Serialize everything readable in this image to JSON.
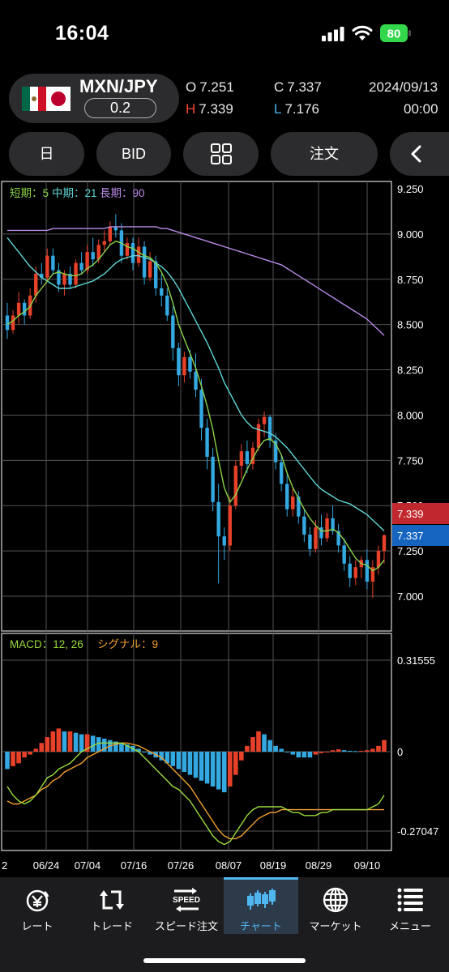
{
  "status_bar": {
    "time": "16:04",
    "battery": "80"
  },
  "header": {
    "pair": "MXN/JPY",
    "spread": "0.2",
    "open_key": "O",
    "open": "7.251",
    "close_key": "C",
    "close": "7.337",
    "high_key": "H",
    "high": "7.339",
    "low_key": "L",
    "low": "7.176",
    "date": "2024/09/13",
    "time": "00:00",
    "flag_icons": [
      "mexico-flag-icon",
      "japan-flag-icon"
    ]
  },
  "toolbar": {
    "period": "日",
    "price_type": "BID",
    "layout_icon": "grid-icon",
    "order": "注文",
    "back_icon": "chevron-left-icon"
  },
  "chart_data": [
    {
      "type": "candlestick",
      "legend": [
        {
          "label": "短期：5",
          "color": "#8bd34a"
        },
        {
          "label": "中期：21",
          "color": "#5fd6d6"
        },
        {
          "label": "長期：90",
          "color": "#b88ae6"
        }
      ],
      "y_ticks": [
        "9.250",
        "9.000",
        "8.750",
        "8.500",
        "8.250",
        "8.000",
        "7.750",
        "7.500",
        "7.250",
        "7.000"
      ],
      "ylim": [
        6.9,
        9.25
      ],
      "x_ticks": [
        "2",
        "06/24",
        "07/04",
        "07/16",
        "07/26",
        "08/07",
        "08/19",
        "08/29",
        "09/10"
      ],
      "price_labels": [
        {
          "value": "7.339",
          "color": "#c0282d"
        },
        {
          "value": "7.337",
          "color": "#1565c0"
        }
      ],
      "up_color": "#e8412a",
      "down_color": "#34a8e0",
      "candles": [
        [
          8.55,
          8.62,
          8.42,
          8.47
        ],
        [
          8.47,
          8.58,
          8.45,
          8.55
        ],
        [
          8.55,
          8.68,
          8.5,
          8.62
        ],
        [
          8.62,
          8.64,
          8.5,
          8.55
        ],
        [
          8.55,
          8.7,
          8.53,
          8.66
        ],
        [
          8.66,
          8.82,
          8.62,
          8.78
        ],
        [
          8.78,
          8.84,
          8.72,
          8.76
        ],
        [
          8.76,
          8.92,
          8.74,
          8.88
        ],
        [
          8.88,
          8.92,
          8.78,
          8.8
        ],
        [
          8.8,
          8.84,
          8.68,
          8.72
        ],
        [
          8.72,
          8.8,
          8.66,
          8.78
        ],
        [
          8.78,
          8.82,
          8.7,
          8.72
        ],
        [
          8.72,
          8.86,
          8.7,
          8.84
        ],
        [
          8.84,
          8.9,
          8.78,
          8.8
        ],
        [
          8.8,
          8.94,
          8.78,
          8.9
        ],
        [
          8.9,
          8.98,
          8.82,
          8.86
        ],
        [
          8.86,
          8.97,
          8.84,
          8.94
        ],
        [
          8.94,
          9.02,
          8.9,
          8.96
        ],
        [
          8.96,
          9.07,
          8.94,
          9.04
        ],
        [
          9.04,
          9.11,
          8.98,
          9.02
        ],
        [
          9.02,
          9.06,
          8.84,
          8.88
        ],
        [
          8.88,
          8.98,
          8.86,
          8.95
        ],
        [
          8.95,
          8.98,
          8.8,
          8.84
        ],
        [
          8.84,
          8.98,
          8.82,
          8.93
        ],
        [
          8.93,
          8.96,
          8.72,
          8.76
        ],
        [
          8.76,
          8.9,
          8.74,
          8.85
        ],
        [
          8.85,
          8.88,
          8.66,
          8.7
        ],
        [
          8.7,
          8.78,
          8.6,
          8.66
        ],
        [
          8.66,
          8.7,
          8.52,
          8.55
        ],
        [
          8.55,
          8.6,
          8.3,
          8.37
        ],
        [
          8.37,
          8.4,
          8.16,
          8.22
        ],
        [
          8.22,
          8.35,
          8.18,
          8.32
        ],
        [
          8.32,
          8.36,
          8.2,
          8.24
        ],
        [
          8.24,
          8.34,
          8.1,
          8.14
        ],
        [
          8.14,
          8.2,
          7.86,
          7.93
        ],
        [
          7.93,
          7.98,
          7.7,
          7.77
        ],
        [
          7.77,
          7.82,
          7.47,
          7.52
        ],
        [
          7.52,
          7.62,
          7.07,
          7.33
        ],
        [
          7.33,
          7.38,
          7.2,
          7.28
        ],
        [
          7.28,
          7.55,
          7.25,
          7.5
        ],
        [
          7.5,
          7.75,
          7.48,
          7.72
        ],
        [
          7.72,
          7.84,
          7.65,
          7.8
        ],
        [
          7.8,
          7.86,
          7.68,
          7.73
        ],
        [
          7.73,
          7.85,
          7.7,
          7.82
        ],
        [
          7.82,
          7.98,
          7.8,
          7.95
        ],
        [
          7.95,
          8.02,
          7.88,
          7.99
        ],
        [
          7.99,
          8.0,
          7.82,
          7.86
        ],
        [
          7.86,
          7.9,
          7.7,
          7.74
        ],
        [
          7.74,
          7.78,
          7.58,
          7.62
        ],
        [
          7.62,
          7.68,
          7.44,
          7.48
        ],
        [
          7.48,
          7.6,
          7.44,
          7.55
        ],
        [
          7.55,
          7.58,
          7.4,
          7.44
        ],
        [
          7.44,
          7.48,
          7.3,
          7.34
        ],
        [
          7.34,
          7.38,
          7.22,
          7.26
        ],
        [
          7.26,
          7.42,
          7.24,
          7.38
        ],
        [
          7.38,
          7.45,
          7.28,
          7.32
        ],
        [
          7.32,
          7.46,
          7.3,
          7.43
        ],
        [
          7.43,
          7.5,
          7.34,
          7.36
        ],
        [
          7.36,
          7.4,
          7.24,
          7.28
        ],
        [
          7.28,
          7.32,
          7.14,
          7.18
        ],
        [
          7.18,
          7.22,
          7.05,
          7.1
        ],
        [
          7.1,
          7.2,
          7.06,
          7.16
        ],
        [
          7.16,
          7.22,
          7.1,
          7.2
        ],
        [
          7.2,
          7.26,
          7.04,
          7.08
        ],
        [
          7.08,
          7.2,
          6.99,
          7.16
        ],
        [
          7.16,
          7.28,
          7.12,
          7.25
        ],
        [
          7.25,
          7.34,
          7.18,
          7.337
        ]
      ],
      "sma_short": [
        8.5,
        8.52,
        8.55,
        8.57,
        8.6,
        8.66,
        8.7,
        8.74,
        8.78,
        8.79,
        8.78,
        8.77,
        8.77,
        8.78,
        8.81,
        8.83,
        8.86,
        8.9,
        8.94,
        8.96,
        8.95,
        8.93,
        8.92,
        8.9,
        8.88,
        8.87,
        8.84,
        8.79,
        8.72,
        8.62,
        8.5,
        8.42,
        8.34,
        8.26,
        8.16,
        8.05,
        7.92,
        7.75,
        7.6,
        7.52,
        7.56,
        7.63,
        7.7,
        7.76,
        7.82,
        7.86,
        7.87,
        7.84,
        7.78,
        7.68,
        7.6,
        7.54,
        7.48,
        7.43,
        7.39,
        7.36,
        7.36,
        7.37,
        7.35,
        7.31,
        7.26,
        7.21,
        7.18,
        7.17,
        7.14,
        7.16,
        7.2
      ],
      "sma_mid": [
        8.98,
        8.94,
        8.9,
        8.86,
        8.82,
        8.79,
        8.76,
        8.74,
        8.72,
        8.7,
        8.7,
        8.7,
        8.71,
        8.72,
        8.73,
        8.74,
        8.76,
        8.78,
        8.81,
        8.84,
        8.86,
        8.87,
        8.88,
        8.88,
        8.87,
        8.86,
        8.84,
        8.82,
        8.79,
        8.75,
        8.7,
        8.64,
        8.58,
        8.52,
        8.46,
        8.4,
        8.33,
        8.26,
        8.18,
        8.12,
        8.06,
        8.0,
        7.96,
        7.93,
        7.92,
        7.91,
        7.9,
        7.88,
        7.85,
        7.82,
        7.78,
        7.74,
        7.7,
        7.66,
        7.62,
        7.59,
        7.57,
        7.55,
        7.53,
        7.52,
        7.51,
        7.49,
        7.47,
        7.45,
        7.42,
        7.39,
        7.36
      ],
      "sma_long": [
        9.02,
        9.02,
        9.02,
        9.02,
        9.02,
        9.02,
        9.02,
        9.02,
        9.03,
        9.03,
        9.03,
        9.03,
        9.03,
        9.03,
        9.03,
        9.03,
        9.03,
        9.03,
        9.04,
        9.04,
        9.04,
        9.04,
        9.04,
        9.04,
        9.04,
        9.04,
        9.04,
        9.03,
        9.03,
        9.02,
        9.01,
        9.0,
        8.99,
        8.98,
        8.97,
        8.96,
        8.95,
        8.94,
        8.93,
        8.92,
        8.91,
        8.9,
        8.89,
        8.88,
        8.87,
        8.86,
        8.85,
        8.84,
        8.83,
        8.81,
        8.79,
        8.77,
        8.75,
        8.73,
        8.71,
        8.69,
        8.67,
        8.65,
        8.63,
        8.61,
        8.59,
        8.57,
        8.55,
        8.53,
        8.5,
        8.47,
        8.44
      ]
    },
    {
      "type": "bar",
      "legend": [
        {
          "label": "MACD：12, 26",
          "color": "#9bdc3c"
        },
        {
          "label": "シグナル：9",
          "color": "#f0a030"
        }
      ],
      "y_ticks": [
        "0.31555",
        "0",
        "-0.27047"
      ],
      "ylim": [
        -0.27047,
        0.31555
      ],
      "histogram": [
        -0.06,
        -0.05,
        -0.04,
        -0.02,
        -0.01,
        0.01,
        0.03,
        0.05,
        0.07,
        0.08,
        0.07,
        0.07,
        0.065,
        0.06,
        0.06,
        0.055,
        0.05,
        0.045,
        0.04,
        0.035,
        0.03,
        0.025,
        0.02,
        0.01,
        0.0,
        -0.01,
        -0.02,
        -0.03,
        -0.04,
        -0.05,
        -0.06,
        -0.07,
        -0.08,
        -0.09,
        -0.1,
        -0.11,
        -0.12,
        -0.13,
        -0.14,
        -0.12,
        -0.08,
        -0.03,
        0.02,
        0.05,
        0.07,
        0.06,
        0.04,
        0.02,
        0.01,
        0.0,
        -0.01,
        -0.02,
        -0.02,
        -0.02,
        -0.01,
        -0.005,
        0.0,
        0.005,
        0.008,
        0.005,
        0.003,
        0.002,
        0.003,
        0.005,
        0.01,
        0.02,
        0.04
      ],
      "macd": [
        -0.12,
        -0.15,
        -0.17,
        -0.18,
        -0.17,
        -0.15,
        -0.12,
        -0.09,
        -0.08,
        -0.06,
        -0.05,
        -0.04,
        -0.02,
        0.0,
        0.01,
        0.02,
        0.03,
        0.03,
        0.03,
        0.03,
        0.03,
        0.02,
        0.01,
        0.0,
        -0.02,
        -0.04,
        -0.06,
        -0.08,
        -0.1,
        -0.12,
        -0.13,
        -0.15,
        -0.17,
        -0.2,
        -0.23,
        -0.26,
        -0.29,
        -0.31,
        -0.32,
        -0.31,
        -0.28,
        -0.25,
        -0.22,
        -0.2,
        -0.19,
        -0.19,
        -0.19,
        -0.19,
        -0.19,
        -0.2,
        -0.21,
        -0.21,
        -0.22,
        -0.22,
        -0.22,
        -0.21,
        -0.21,
        -0.2,
        -0.2,
        -0.2,
        -0.2,
        -0.2,
        -0.2,
        -0.2,
        -0.19,
        -0.18,
        -0.15
      ],
      "signal": [
        -0.17,
        -0.18,
        -0.18,
        -0.17,
        -0.16,
        -0.15,
        -0.13,
        -0.12,
        -0.1,
        -0.09,
        -0.07,
        -0.06,
        -0.05,
        -0.04,
        -0.02,
        -0.01,
        0.0,
        0.01,
        0.02,
        0.025,
        0.03,
        0.03,
        0.025,
        0.02,
        0.01,
        0.0,
        -0.01,
        -0.02,
        -0.04,
        -0.06,
        -0.08,
        -0.1,
        -0.12,
        -0.15,
        -0.18,
        -0.21,
        -0.24,
        -0.27,
        -0.29,
        -0.3,
        -0.3,
        -0.29,
        -0.27,
        -0.25,
        -0.23,
        -0.22,
        -0.21,
        -0.21,
        -0.2,
        -0.2,
        -0.2,
        -0.2,
        -0.2,
        -0.2,
        -0.2,
        -0.2,
        -0.2,
        -0.2,
        -0.2,
        -0.2,
        -0.2,
        -0.2,
        -0.2,
        -0.2,
        -0.2,
        -0.2,
        -0.2
      ]
    }
  ],
  "nav": [
    {
      "label": "レート",
      "icon": "yen-rate-icon",
      "active": false
    },
    {
      "label": "トレード",
      "icon": "trade-icon",
      "active": false
    },
    {
      "label": "スピード注文",
      "icon": "speed-order-icon",
      "active": false
    },
    {
      "label": "チャート",
      "icon": "candlestick-chart-icon",
      "active": true
    },
    {
      "label": "マーケット",
      "icon": "globe-icon",
      "active": false
    },
    {
      "label": "メニュー",
      "icon": "menu-icon",
      "active": false
    }
  ],
  "nav_icon_text": {
    "speed": "SPEED"
  }
}
